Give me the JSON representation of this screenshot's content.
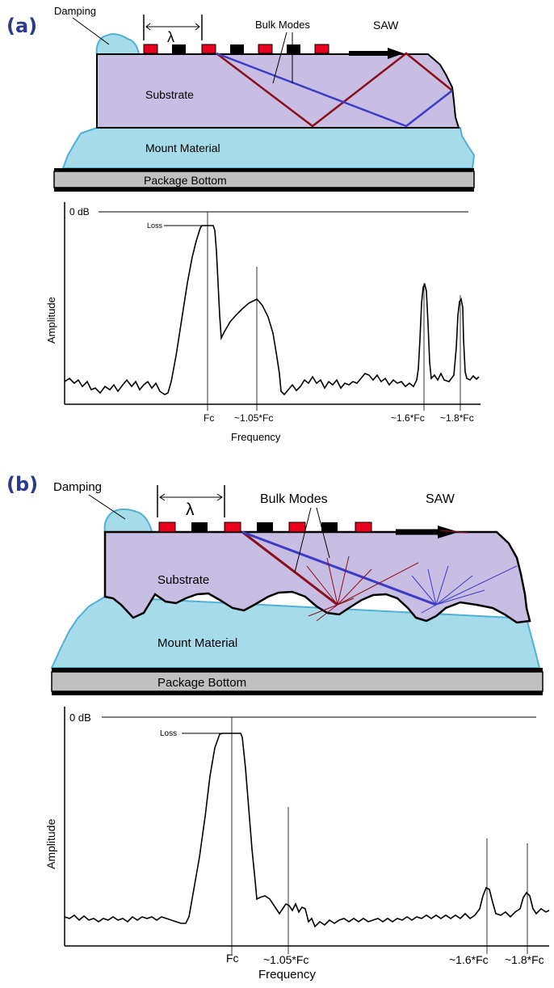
{
  "panels": [
    {
      "id": "a",
      "label": "(a)",
      "diagram": {
        "damping": "Damping",
        "wavelength_symbol": "λ",
        "bulk_modes": "Bulk Modes",
        "saw": "SAW",
        "substrate": "Substrate",
        "mount_material": "Mount Material",
        "package_bottom": "Package Bottom"
      },
      "spectrum": {
        "reference_level": "0 dB",
        "loss": "Loss",
        "ylabel": "Amplitude",
        "xlabel": "Frequency",
        "ticks": [
          "Fc",
          "~1.05*Fc",
          "~1.6*Fc",
          "~1.8*Fc"
        ]
      }
    },
    {
      "id": "b",
      "label": "(b)",
      "diagram": {
        "damping": "Damping",
        "wavelength_symbol": "λ",
        "bulk_modes": "Bulk Modes",
        "saw": "SAW",
        "substrate": "Substrate",
        "mount_material": "Mount Material",
        "package_bottom": "Package Bottom"
      },
      "spectrum": {
        "reference_level": "0 dB",
        "loss": "Loss",
        "ylabel": "Amplitude",
        "xlabel": "Frequency",
        "ticks": [
          "Fc",
          "~1.05*Fc",
          "~1.6*Fc",
          "~1.8*Fc"
        ]
      }
    }
  ],
  "colors": {
    "substrate": "#c8bde3",
    "mount": "#a6dcea",
    "mount_edge": "#4fb0d8",
    "package": "#c0c0c0",
    "electrode_red": "#e8001c",
    "electrode_black": "#000000",
    "bulk_red": "#8b0f1a",
    "bulk_blue": "#3c3cc8",
    "panel_label": "#2b3a8f"
  }
}
